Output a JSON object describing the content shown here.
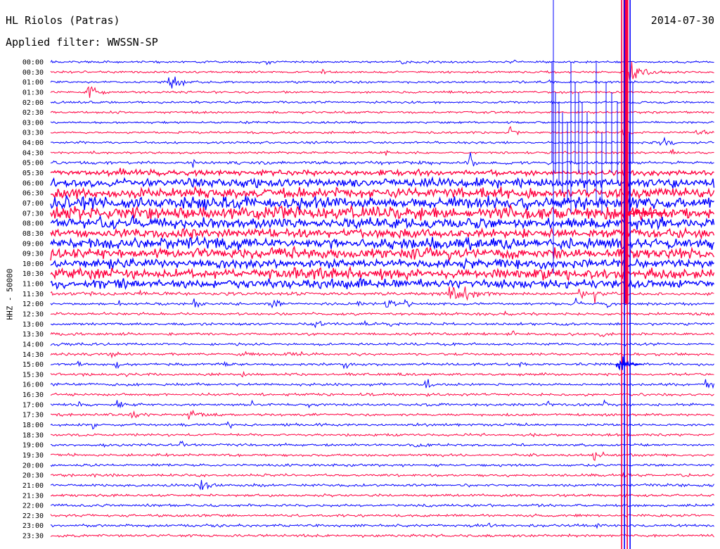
{
  "header": {
    "station": "HL Riolos (Patras)",
    "date": "2014-07-30",
    "filter": "Applied filter: WWSSN-SP"
  },
  "chart_data": {
    "type": "helicorder",
    "ylabel": "HHZ - 50000",
    "row_minutes": 30,
    "times": [
      "00:00",
      "00:30",
      "01:00",
      "01:30",
      "02:00",
      "02:30",
      "03:00",
      "03:30",
      "04:00",
      "04:30",
      "05:00",
      "05:30",
      "06:00",
      "06:30",
      "07:00",
      "07:30",
      "08:00",
      "08:30",
      "09:00",
      "09:30",
      "10:00",
      "10:30",
      "11:00",
      "11:30",
      "12:00",
      "12:30",
      "13:00",
      "13:30",
      "14:00",
      "14:30",
      "15:00",
      "15:30",
      "16:00",
      "16:30",
      "17:00",
      "17:30",
      "18:00",
      "18:30",
      "19:00",
      "19:30",
      "20:00",
      "20:30",
      "21:00",
      "21:30",
      "22:00",
      "22:30",
      "23:00",
      "23:30"
    ],
    "trace_colors": [
      "#0000ff",
      "#ff0040"
    ],
    "noise_level": [
      1,
      1,
      1,
      1,
      1,
      1,
      1,
      1,
      1,
      1,
      1.5,
      3,
      5,
      6,
      7,
      7,
      6,
      5,
      6,
      6,
      5,
      6,
      5,
      1.5,
      1.2,
      1.2,
      1.2,
      1.2,
      1.2,
      1.2,
      1.2,
      1.2,
      1.2,
      1.2,
      1.2,
      1.2,
      1.2,
      1.2,
      1.2,
      1.2,
      1.2,
      1.2,
      1.2,
      1.2,
      1.2,
      1.2,
      1.2,
      1.2
    ],
    "major_event": {
      "time": "15:00",
      "minute_in_row": 26
    }
  }
}
